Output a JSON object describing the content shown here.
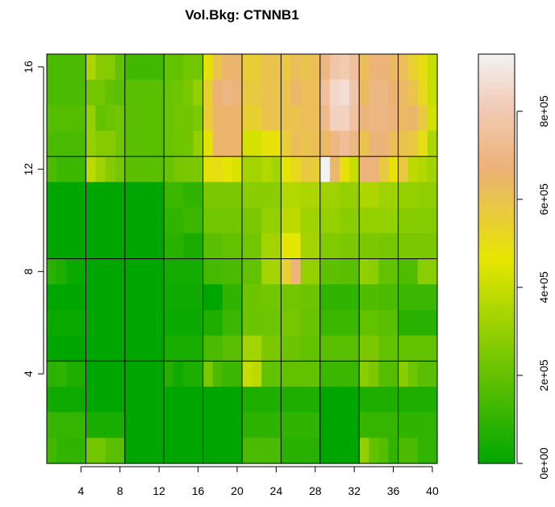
{
  "chart_data": {
    "type": "heatmap",
    "title": "Vol.Bkg:  CTNNB1",
    "xlabel": "",
    "ylabel": "",
    "x_range": [
      1,
      40
    ],
    "y_range": [
      1,
      16
    ],
    "x_ticks": [
      4,
      8,
      12,
      16,
      20,
      24,
      28,
      32,
      36,
      40
    ],
    "y_ticks": [
      4,
      8,
      12,
      16
    ],
    "block_columns": 10,
    "block_rows": 4,
    "block_size": [
      4,
      4
    ],
    "colorbar": {
      "range": [
        0,
        930000
      ],
      "ticks": [
        0,
        200000,
        400000,
        600000,
        800000
      ],
      "tick_labels": [
        "0e+00",
        "2e+05",
        "4e+05",
        "6e+05",
        "8e+05"
      ],
      "color_low": "#00A600",
      "color_mid": "#E6E600",
      "color_high": "#F2F2F2"
    },
    "values": [
      [
        150000,
        150000,
        150000,
        150000,
        350000,
        270000,
        270000,
        200000,
        130000,
        130000,
        130000,
        130000,
        200000,
        200000,
        230000,
        230000,
        480000,
        600000,
        650000,
        650000,
        560000,
        560000,
        600000,
        600000,
        580000,
        620000,
        600000,
        620000,
        700000,
        780000,
        800000,
        750000,
        620000,
        680000,
        680000,
        640000,
        620000,
        550000,
        500000,
        400000
      ],
      [
        150000,
        150000,
        150000,
        150000,
        230000,
        230000,
        200000,
        180000,
        180000,
        180000,
        180000,
        180000,
        210000,
        220000,
        250000,
        300000,
        550000,
        670000,
        700000,
        680000,
        580000,
        580000,
        600000,
        600000,
        600000,
        650000,
        620000,
        620000,
        750000,
        850000,
        870000,
        780000,
        630000,
        700000,
        700000,
        660000,
        640000,
        600000,
        520000,
        400000
      ],
      [
        170000,
        170000,
        170000,
        170000,
        300000,
        200000,
        220000,
        230000,
        180000,
        180000,
        180000,
        180000,
        210000,
        230000,
        230000,
        250000,
        560000,
        650000,
        650000,
        650000,
        550000,
        550000,
        600000,
        600000,
        600000,
        600000,
        620000,
        620000,
        720000,
        830000,
        830000,
        760000,
        680000,
        700000,
        700000,
        680000,
        640000,
        650000,
        580000,
        420000
      ],
      [
        150000,
        150000,
        150000,
        150000,
        300000,
        270000,
        270000,
        230000,
        180000,
        180000,
        180000,
        180000,
        210000,
        220000,
        230000,
        300000,
        480000,
        650000,
        650000,
        650000,
        430000,
        430000,
        480000,
        480000,
        560000,
        620000,
        600000,
        620000,
        640000,
        700000,
        740000,
        700000,
        600000,
        680000,
        680000,
        620000,
        600000,
        580000,
        500000,
        350000
      ],
      [
        150000,
        120000,
        120000,
        120000,
        380000,
        320000,
        270000,
        240000,
        180000,
        180000,
        180000,
        180000,
        210000,
        240000,
        250000,
        250000,
        480000,
        500000,
        470000,
        440000,
        330000,
        330000,
        360000,
        330000,
        460000,
        520000,
        580000,
        560000,
        930000,
        640000,
        480000,
        400000,
        680000,
        680000,
        580000,
        480000,
        580000,
        380000,
        360000,
        330000
      ],
      [
        0,
        0,
        0,
        0,
        0,
        0,
        0,
        0,
        0,
        0,
        0,
        0,
        120000,
        120000,
        100000,
        100000,
        250000,
        250000,
        250000,
        250000,
        280000,
        280000,
        280000,
        280000,
        360000,
        360000,
        350000,
        350000,
        320000,
        320000,
        300000,
        300000,
        350000,
        350000,
        320000,
        320000,
        300000,
        300000,
        290000,
        290000
      ],
      [
        0,
        0,
        0,
        0,
        0,
        0,
        0,
        0,
        0,
        0,
        0,
        0,
        100000,
        100000,
        120000,
        120000,
        230000,
        230000,
        230000,
        230000,
        250000,
        250000,
        300000,
        300000,
        380000,
        380000,
        320000,
        320000,
        300000,
        300000,
        280000,
        280000,
        300000,
        300000,
        300000,
        300000,
        270000,
        270000,
        270000,
        270000
      ],
      [
        0,
        0,
        0,
        0,
        0,
        0,
        0,
        0,
        0,
        0,
        0,
        0,
        80000,
        80000,
        50000,
        50000,
        180000,
        180000,
        200000,
        200000,
        230000,
        230000,
        330000,
        330000,
        460000,
        470000,
        330000,
        330000,
        260000,
        260000,
        250000,
        250000,
        250000,
        250000,
        240000,
        240000,
        250000,
        250000,
        250000,
        250000
      ],
      [
        80000,
        60000,
        20000,
        20000,
        0,
        0,
        0,
        0,
        0,
        0,
        0,
        0,
        40000,
        40000,
        40000,
        40000,
        140000,
        140000,
        150000,
        150000,
        200000,
        200000,
        330000,
        330000,
        550000,
        680000,
        300000,
        300000,
        190000,
        190000,
        180000,
        180000,
        300000,
        280000,
        200000,
        200000,
        160000,
        160000,
        280000,
        280000
      ],
      [
        0,
        0,
        0,
        0,
        0,
        0,
        0,
        0,
        0,
        0,
        0,
        0,
        30000,
        30000,
        30000,
        30000,
        0,
        0,
        100000,
        100000,
        220000,
        220000,
        230000,
        230000,
        230000,
        230000,
        220000,
        220000,
        100000,
        100000,
        100000,
        100000,
        160000,
        160000,
        150000,
        150000,
        120000,
        120000,
        120000,
        120000
      ],
      [
        20000,
        20000,
        20000,
        20000,
        0,
        0,
        0,
        0,
        0,
        0,
        0,
        0,
        20000,
        20000,
        20000,
        20000,
        60000,
        60000,
        120000,
        120000,
        220000,
        220000,
        220000,
        220000,
        240000,
        240000,
        210000,
        210000,
        120000,
        120000,
        120000,
        120000,
        200000,
        200000,
        180000,
        180000,
        80000,
        80000,
        80000,
        80000
      ],
      [
        0,
        0,
        0,
        0,
        0,
        0,
        0,
        0,
        0,
        0,
        0,
        0,
        50000,
        50000,
        50000,
        50000,
        150000,
        150000,
        180000,
        180000,
        330000,
        330000,
        250000,
        250000,
        220000,
        220000,
        200000,
        200000,
        180000,
        180000,
        180000,
        180000,
        250000,
        250000,
        200000,
        200000,
        200000,
        200000,
        200000,
        200000
      ],
      [
        80000,
        100000,
        60000,
        60000,
        0,
        0,
        0,
        0,
        0,
        0,
        0,
        0,
        70000,
        30000,
        60000,
        60000,
        250000,
        150000,
        120000,
        120000,
        400000,
        380000,
        200000,
        200000,
        200000,
        200000,
        200000,
        200000,
        120000,
        120000,
        120000,
        120000,
        280000,
        250000,
        170000,
        170000,
        280000,
        220000,
        180000,
        180000
      ],
      [
        30000,
        30000,
        30000,
        30000,
        0,
        0,
        0,
        0,
        0,
        0,
        0,
        0,
        0,
        0,
        0,
        0,
        0,
        0,
        0,
        0,
        60000,
        60000,
        60000,
        60000,
        60000,
        60000,
        60000,
        60000,
        0,
        0,
        0,
        0,
        60000,
        60000,
        60000,
        60000,
        60000,
        60000,
        60000,
        60000
      ],
      [
        110000,
        110000,
        110000,
        110000,
        50000,
        50000,
        50000,
        50000,
        0,
        0,
        0,
        0,
        0,
        0,
        0,
        0,
        0,
        0,
        0,
        0,
        90000,
        90000,
        90000,
        90000,
        100000,
        100000,
        100000,
        100000,
        0,
        0,
        0,
        0,
        110000,
        110000,
        110000,
        110000,
        100000,
        100000,
        100000,
        100000
      ],
      [
        130000,
        100000,
        100000,
        100000,
        230000,
        230000,
        180000,
        180000,
        0,
        0,
        0,
        0,
        0,
        0,
        0,
        0,
        0,
        0,
        0,
        0,
        150000,
        150000,
        150000,
        150000,
        80000,
        80000,
        80000,
        80000,
        0,
        0,
        0,
        0,
        300000,
        200000,
        170000,
        100000,
        150000,
        150000,
        100000,
        100000
      ]
    ]
  }
}
